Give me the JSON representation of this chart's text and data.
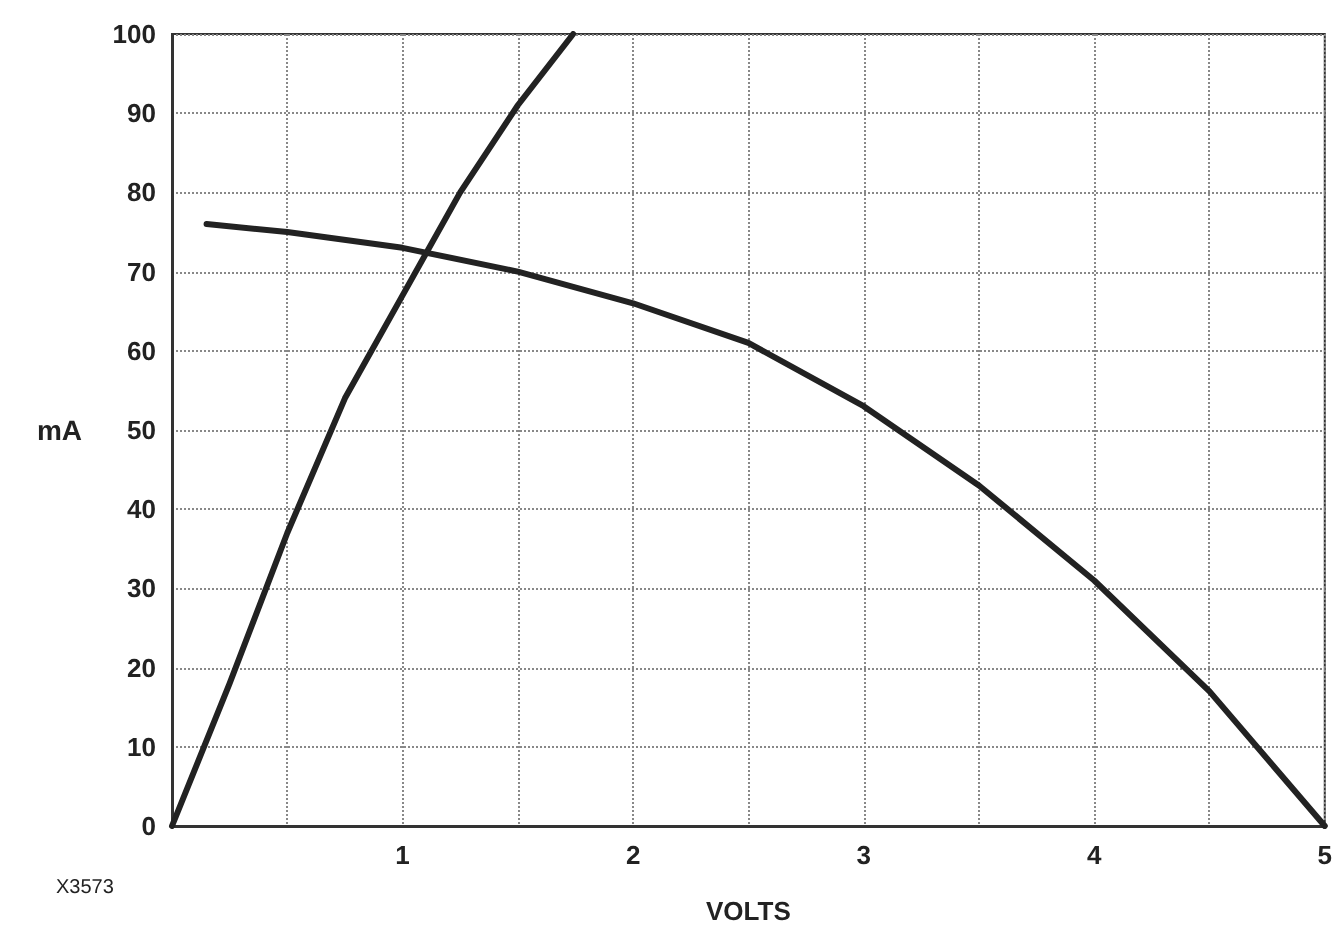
{
  "chart_data": {
    "type": "line",
    "xlabel": "VOLTS",
    "ylabel": "mA",
    "annotations": [
      "X3573"
    ],
    "series": [
      {
        "color": "#222222",
        "x": [
          0,
          0.25,
          0.5,
          0.75,
          1,
          1.25,
          1.5,
          1.74
        ],
        "values": [
          0,
          18,
          37,
          54,
          67,
          80,
          91,
          100
        ]
      },
      {
        "color": "#222222",
        "x": [
          0.15,
          0.5,
          1,
          1.5,
          2,
          2.5,
          3,
          3.5,
          4,
          4.5,
          5
        ],
        "values": [
          76,
          75,
          73,
          70,
          66,
          61,
          53,
          43,
          31,
          17,
          0
        ]
      }
    ],
    "xlim": [
      0,
      5
    ],
    "xticks": [
      {
        "value": 0,
        "label": null
      },
      {
        "value": 0.5,
        "label": null
      },
      1,
      {
        "value": 1.5,
        "label": null
      },
      2,
      {
        "value": 2.5,
        "label": null
      },
      3,
      {
        "value": 3.5,
        "label": null
      },
      4,
      {
        "value": 4.5,
        "label": null
      },
      5
    ],
    "ylim": [
      0,
      100
    ],
    "yticks": [
      0,
      10,
      20,
      30,
      40,
      50,
      60,
      70,
      80,
      90,
      100
    ],
    "grid": true,
    "marker": "none",
    "line_style": "solid"
  }
}
